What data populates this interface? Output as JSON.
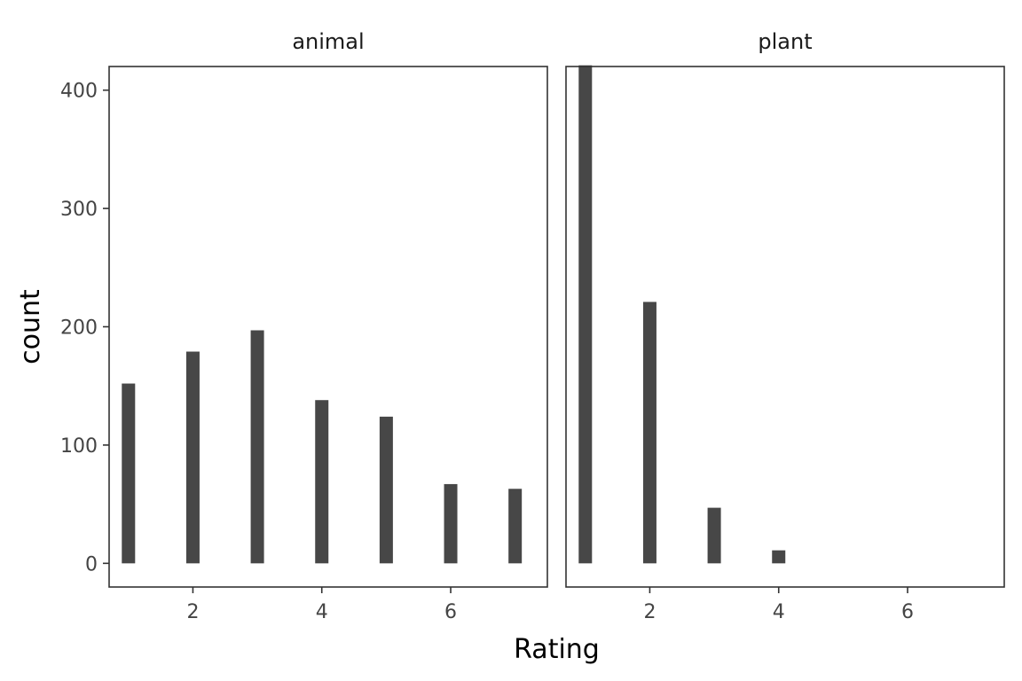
{
  "chart_data": {
    "type": "bar",
    "title": "",
    "xlabel": "Rating",
    "ylabel": "count",
    "xlim": [
      0.7,
      7.5
    ],
    "ylim": [
      -20,
      420
    ],
    "x_ticks": [
      2,
      4,
      6
    ],
    "y_ticks": [
      0,
      100,
      200,
      300,
      400
    ],
    "grid": false,
    "colors": {
      "bar": "#474747",
      "border": "#333333",
      "tick_label": "#444444"
    },
    "panels": [
      {
        "name": "animal",
        "x": [
          1,
          2,
          3,
          4,
          5,
          6,
          7
        ],
        "values": [
          152,
          179,
          197,
          138,
          124,
          67,
          63
        ]
      },
      {
        "name": "plant",
        "x": [
          1,
          2,
          3,
          4
        ],
        "values": [
          421,
          221,
          47,
          11
        ]
      }
    ]
  }
}
